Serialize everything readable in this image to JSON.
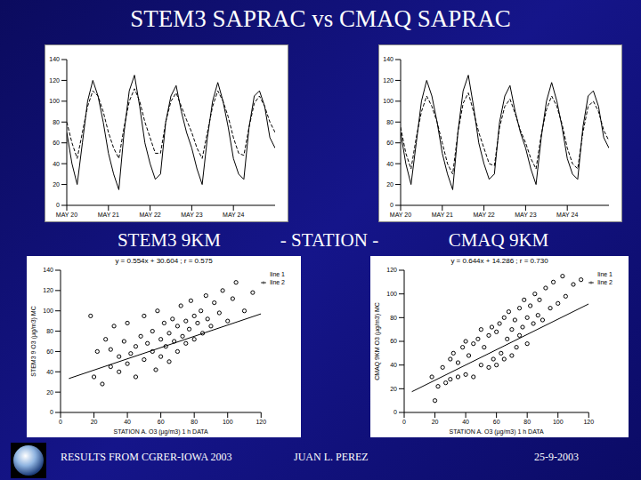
{
  "slide": {
    "title": "STEM3 SAPRAC vs CMAQ SAPRAC",
    "labels": [
      "STEM3 9KM",
      "- STATION -",
      "CMAQ 9KM"
    ],
    "footer": [
      "RESULTS FROM CGRER-IOWA 2003",
      "JUAN L. PEREZ",
      "25-9-2003"
    ]
  },
  "chart_data": [
    {
      "type": "line",
      "x": [
        0,
        3,
        6,
        9,
        12,
        15,
        18,
        21,
        24,
        27,
        30,
        33,
        36,
        39,
        42,
        45,
        48,
        51,
        54,
        57,
        60,
        63,
        66,
        69,
        72,
        75,
        78,
        81,
        84,
        87,
        90,
        93,
        96,
        99,
        102,
        105,
        108,
        111,
        114,
        117,
        120
      ],
      "xlim": [
        0,
        120
      ],
      "xticks": [
        {
          "value": 0,
          "label": "MAY 20"
        },
        {
          "value": 24,
          "label": "MAY 21"
        },
        {
          "value": 48,
          "label": "MAY 22"
        },
        {
          "value": 72,
          "label": "MAY 23"
        },
        {
          "value": 96,
          "label": "MAY 24"
        }
      ],
      "ylim": [
        0,
        140
      ],
      "yticks": [
        0,
        20,
        40,
        60,
        80,
        100,
        120,
        140
      ],
      "series": [
        {
          "color": "#000000",
          "line_style": "solid",
          "values": [
            70,
            40,
            20,
            60,
            100,
            120,
            105,
            80,
            50,
            30,
            15,
            70,
            110,
            125,
            95,
            60,
            40,
            25,
            30,
            80,
            105,
            115,
            90,
            70,
            55,
            35,
            20,
            65,
            100,
            118,
            100,
            75,
            45,
            30,
            25,
            75,
            105,
            110,
            95,
            65,
            55
          ]
        },
        {
          "color": "#000000",
          "line_style": "dashed",
          "values": [
            80,
            60,
            45,
            70,
            95,
            110,
            105,
            90,
            70,
            55,
            45,
            75,
            100,
            112,
            100,
            80,
            65,
            50,
            50,
            80,
            100,
            108,
            95,
            82,
            70,
            55,
            45,
            70,
            95,
            110,
            100,
            85,
            65,
            50,
            48,
            75,
            98,
            105,
            95,
            80,
            70
          ]
        }
      ]
    },
    {
      "type": "line",
      "x": [
        0,
        3,
        6,
        9,
        12,
        15,
        18,
        21,
        24,
        27,
        30,
        33,
        36,
        39,
        42,
        45,
        48,
        51,
        54,
        57,
        60,
        63,
        66,
        69,
        72,
        75,
        78,
        81,
        84,
        87,
        90,
        93,
        96,
        99,
        102,
        105,
        108,
        111,
        114,
        117,
        120
      ],
      "xlim": [
        0,
        120
      ],
      "xticks": [
        {
          "value": 0,
          "label": "MAY 20"
        },
        {
          "value": 24,
          "label": "MAY 21"
        },
        {
          "value": 48,
          "label": "MAY 22"
        },
        {
          "value": 72,
          "label": "MAY 23"
        },
        {
          "value": 96,
          "label": "MAY 24"
        }
      ],
      "ylim": [
        0,
        140
      ],
      "yticks": [
        0,
        20,
        40,
        60,
        80,
        100,
        120,
        140
      ],
      "series": [
        {
          "color": "#000000",
          "line_style": "solid",
          "values": [
            70,
            40,
            20,
            60,
            100,
            120,
            105,
            80,
            50,
            30,
            15,
            70,
            110,
            125,
            95,
            60,
            40,
            25,
            30,
            80,
            105,
            115,
            90,
            70,
            55,
            35,
            20,
            65,
            100,
            118,
            100,
            75,
            45,
            30,
            25,
            75,
            105,
            110,
            95,
            65,
            55
          ]
        },
        {
          "color": "#000000",
          "line_style": "dashed",
          "values": [
            75,
            50,
            35,
            65,
            90,
            105,
            95,
            80,
            60,
            40,
            30,
            70,
            98,
            108,
            90,
            70,
            55,
            40,
            38,
            75,
            95,
            102,
            88,
            72,
            60,
            45,
            35,
            68,
            92,
            105,
            95,
            78,
            55,
            40,
            35,
            70,
            95,
            100,
            90,
            72,
            62
          ]
        }
      ]
    },
    {
      "type": "scatter",
      "title": "y = 0.554x + 30.604 ; r = 0.575",
      "x_label": "STATION A. O3 (µg/m3) 1 h DATA",
      "y_label": "STEM3 9 O3 (µg/m3) MC",
      "xlim": [
        0,
        120
      ],
      "xticks": [
        0,
        20,
        40,
        60,
        80,
        100,
        120
      ],
      "ylim": [
        0,
        140
      ],
      "yticks": [
        0,
        20,
        40,
        60,
        80,
        100,
        120,
        140
      ],
      "legend": "top-right",
      "series": [
        {
          "name": "line 1",
          "type": "scatter",
          "marker": "circle",
          "color": "#000000",
          "x": [
            18,
            20,
            22,
            25,
            27,
            30,
            30,
            32,
            35,
            35,
            38,
            40,
            40,
            42,
            45,
            45,
            48,
            50,
            50,
            52,
            55,
            55,
            57,
            58,
            60,
            60,
            62,
            63,
            65,
            65,
            67,
            68,
            70,
            70,
            72,
            73,
            75,
            75,
            77,
            78,
            80,
            80,
            82,
            84,
            85,
            87,
            88,
            90,
            92,
            95,
            97,
            100,
            103,
            105,
            110,
            115
          ],
          "values": [
            95,
            35,
            60,
            28,
            72,
            62,
            45,
            85,
            40,
            55,
            70,
            48,
            88,
            58,
            65,
            35,
            75,
            52,
            95,
            68,
            60,
            80,
            42,
            100,
            72,
            55,
            88,
            65,
            78,
            50,
            92,
            70,
            85,
            60,
            105,
            75,
            90,
            68,
            82,
            110,
            95,
            72,
            88,
            100,
            78,
            115,
            92,
            85,
            108,
            98,
            120,
            90,
            112,
            128,
            100,
            118
          ]
        },
        {
          "name": "line 2",
          "type": "line",
          "color": "#000000",
          "x": [
            5,
            120
          ],
          "values": [
            33.374,
            97.084
          ]
        }
      ]
    },
    {
      "type": "scatter",
      "title": "y = 0.644x + 14.286 ; r = 0.730",
      "x_label": "STATION A. O3 (µg/m3) 1 h DATA",
      "y_label": "CMAQ 9KM O3 (µg/m3) MC",
      "xlim": [
        0,
        120
      ],
      "xticks": [
        0,
        20,
        40,
        60,
        80,
        100,
        120
      ],
      "ylim": [
        0,
        120
      ],
      "yticks": [
        0,
        20,
        40,
        60,
        80,
        100,
        120
      ],
      "legend": "top-right",
      "series": [
        {
          "name": "line 1",
          "type": "scatter",
          "marker": "circle",
          "color": "#000000",
          "x": [
            18,
            20,
            22,
            25,
            27,
            30,
            30,
            32,
            35,
            35,
            38,
            40,
            40,
            42,
            45,
            45,
            48,
            50,
            50,
            52,
            55,
            55,
            57,
            58,
            60,
            60,
            62,
            63,
            65,
            65,
            67,
            68,
            70,
            70,
            72,
            73,
            75,
            75,
            77,
            78,
            80,
            80,
            82,
            84,
            85,
            87,
            88,
            90,
            92,
            95,
            97,
            100,
            103,
            105,
            110,
            115
          ],
          "values": [
            30,
            10,
            22,
            38,
            25,
            45,
            28,
            50,
            30,
            42,
            55,
            32,
            60,
            48,
            58,
            30,
            62,
            40,
            70,
            55,
            65,
            38,
            72,
            45,
            68,
            40,
            75,
            50,
            80,
            45,
            62,
            85,
            70,
            48,
            78,
            55,
            88,
            65,
            72,
            95,
            80,
            58,
            90,
            75,
            100,
            82,
            95,
            78,
            105,
            88,
            110,
            92,
            115,
            98,
            108,
            112
          ]
        },
        {
          "name": "line 2",
          "type": "line",
          "color": "#000000",
          "x": [
            5,
            120
          ],
          "values": [
            17.506,
            91.566
          ]
        }
      ]
    }
  ]
}
